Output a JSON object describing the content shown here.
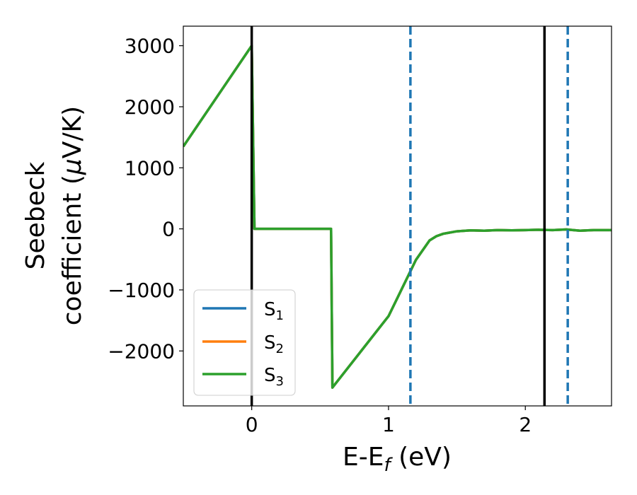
{
  "chart_data": {
    "type": "line",
    "xlabel": "E-E",
    "xlabel_subscript": "f",
    "xlabel_unit": " (eV)",
    "ylabel_line1": "Seebeck",
    "ylabel_line2_prefix": "coefficient  (",
    "ylabel_mu": "μ",
    "ylabel_line2_suffix": "V/K)",
    "xlim": [
      -0.5,
      2.63
    ],
    "ylim": [
      -2900,
      3320
    ],
    "xticks": [
      0,
      1,
      2
    ],
    "yticks": [
      -2000,
      -1000,
      0,
      1000,
      2000,
      3000
    ],
    "xtick_labels": [
      "0",
      "1",
      "2"
    ],
    "ytick_labels": [
      "−2000",
      "−1000",
      "0",
      "1000",
      "2000",
      "3000"
    ],
    "grid": false,
    "legend_position": "lower-left",
    "series": [
      {
        "name": "S",
        "sub": "1",
        "color": "#1f77b4",
        "x": [
          -0.5,
          0.0,
          0.02,
          0.58,
          0.59,
          1.0,
          1.2,
          1.3,
          1.35,
          1.4,
          1.5,
          1.6,
          1.7,
          1.8,
          1.9,
          2.0,
          2.1,
          2.2,
          2.3,
          2.4,
          2.5,
          2.63
        ],
        "y": [
          1350,
          3000,
          0,
          0,
          -2600,
          -1430,
          -510,
          -190,
          -120,
          -80,
          -40,
          -25,
          -30,
          -20,
          -25,
          -20,
          -15,
          -20,
          -10,
          -30,
          -20,
          -20
        ]
      },
      {
        "name": "S",
        "sub": "2",
        "color": "#ff7f0e",
        "x": [
          -0.5,
          0.0,
          0.02,
          0.58,
          0.59,
          1.0,
          1.2,
          1.3,
          1.35,
          1.4,
          1.5,
          1.6,
          1.7,
          1.8,
          1.9,
          2.0,
          2.1,
          2.2,
          2.3,
          2.4,
          2.5,
          2.63
        ],
        "y": [
          1350,
          3000,
          0,
          0,
          -2600,
          -1430,
          -510,
          -190,
          -120,
          -80,
          -40,
          -25,
          -30,
          -20,
          -25,
          -20,
          -15,
          -20,
          -10,
          -30,
          -20,
          -20
        ]
      },
      {
        "name": "S",
        "sub": "3",
        "color": "#2ca02c",
        "x": [
          -0.5,
          0.0,
          0.02,
          0.58,
          0.59,
          1.0,
          1.2,
          1.3,
          1.35,
          1.4,
          1.5,
          1.6,
          1.7,
          1.8,
          1.9,
          2.0,
          2.1,
          2.2,
          2.3,
          2.4,
          2.5,
          2.63
        ],
        "y": [
          1350,
          3000,
          0,
          0,
          -2600,
          -1430,
          -510,
          -190,
          -120,
          -80,
          -40,
          -25,
          -30,
          -20,
          -25,
          -20,
          -15,
          -20,
          -10,
          -30,
          -20,
          -20
        ]
      }
    ],
    "vlines": [
      {
        "x": 0.0,
        "style": "solid",
        "color": "#000000"
      },
      {
        "x": 1.16,
        "style": "dashed",
        "color": "#1f77b4"
      },
      {
        "x": 2.14,
        "style": "solid",
        "color": "#000000"
      },
      {
        "x": 2.31,
        "style": "dashed",
        "color": "#1f77b4"
      }
    ]
  }
}
